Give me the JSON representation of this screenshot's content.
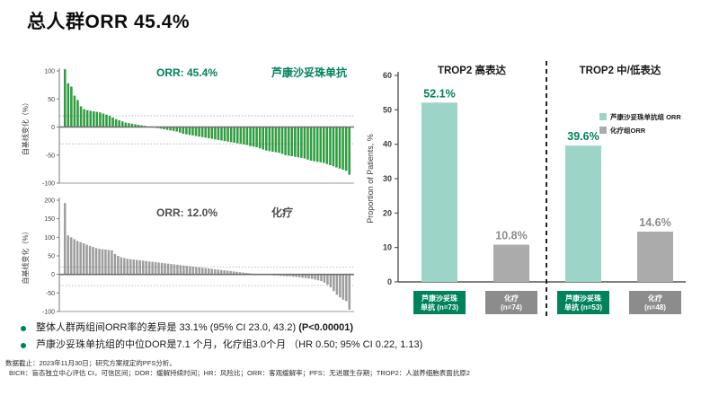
{
  "title": "总人群ORR 45.4%",
  "bullets": [
    {
      "text": "整体人群两组间ORR率的差异是 33.1% (95% CI 23.0, 43.2) ",
      "bold": "(P<0.00001)"
    },
    {
      "text": "芦康沙妥珠单抗组的中位DOR是7.1 个月，化疗组3.0个月 （HR 0.50; 95% CI 0.22, 1.13)",
      "bold": ""
    }
  ],
  "footnotes": [
    "数据截止：2023年11月30日；研究方案规定的PFS分析。",
    "BICR：盲态独立中心评估 CI，可信区间；DOR：缓解持续时间；HR：风险比；ORR：客观缓解率；PFS：无进展生存期；TROP2：人滋养细胞表面抗原2"
  ],
  "chart_data": [
    {
      "id": "waterfall_drug",
      "type": "bar",
      "title": "ORR: 45.4%",
      "arm_label": "芦康沙妥珠单抗",
      "ylabel": "自基线变化（%）",
      "ylim": [
        -100,
        100
      ],
      "yticks": [
        100,
        50,
        0,
        -50,
        -100
      ],
      "ref_lines": [
        20,
        -30
      ],
      "bar_color": "#2f9e41",
      "label_color": "#00815B",
      "values": [
        103,
        78,
        72,
        56,
        48,
        37,
        32,
        30,
        29,
        28,
        27,
        26,
        24,
        22,
        20,
        17,
        14,
        12,
        10,
        8,
        7,
        6,
        5,
        4,
        3,
        2,
        1,
        1,
        -1,
        -2,
        -3,
        -4,
        -5,
        -6,
        -7,
        -8,
        -10,
        -12,
        -13,
        -14,
        -15,
        -16,
        -17,
        -18,
        -19,
        -20,
        -21,
        -22,
        -23,
        -24,
        -25,
        -26,
        -27,
        -28,
        -29,
        -30,
        -31,
        -32,
        -34,
        -35,
        -36,
        -38,
        -40,
        -42,
        -43,
        -44,
        -45,
        -46,
        -48,
        -50,
        -51,
        -52,
        -53,
        -54,
        -55,
        -56,
        -58,
        -60,
        -61,
        -62,
        -63,
        -64,
        -66,
        -68,
        -70,
        -72,
        -74,
        -76,
        -78,
        -85
      ]
    },
    {
      "id": "waterfall_chemo",
      "type": "bar",
      "title": "ORR: 12.0%",
      "arm_label": "化疗",
      "ylabel": "自基线变化（%）",
      "ylim": [
        -100,
        200
      ],
      "yticks": [
        200,
        150,
        100,
        50,
        0,
        -50,
        -100
      ],
      "ref_lines": [
        20,
        -30
      ],
      "bar_color": "#9d9d9d",
      "label_color": "#4d4d4d",
      "values": [
        192,
        105,
        100,
        95,
        90,
        87,
        84,
        80,
        77,
        74,
        71,
        69,
        68,
        67,
        66,
        65,
        55,
        50,
        46,
        44,
        42,
        41,
        40,
        39,
        38,
        37,
        36,
        35,
        34,
        33,
        32,
        31,
        30,
        29,
        28,
        27,
        26,
        25,
        24,
        23,
        22,
        21,
        20,
        19,
        18,
        17,
        16,
        15,
        14,
        13,
        12,
        11,
        10,
        9,
        8,
        7,
        6,
        5,
        4,
        3,
        2,
        1,
        0,
        -1,
        -1,
        -2,
        -2,
        -3,
        -3,
        -4,
        -4,
        -5,
        -5,
        -6,
        -7,
        -8,
        -9,
        -10,
        -11,
        -12,
        -14,
        -16,
        -18,
        -22,
        -28,
        -35,
        -45,
        -55,
        -62,
        -68,
        -72,
        -95
      ]
    },
    {
      "id": "orr_by_trop2",
      "type": "bar",
      "ylabel": "Proportion of Patients, %",
      "ylim": [
        0,
        60
      ],
      "yticks": [
        0,
        10,
        20,
        30,
        40,
        50,
        60
      ],
      "series_styles": {
        "drug": {
          "bar": "#9CD4C7",
          "value_label": "#00815B",
          "box": "#00835C"
        },
        "chemo": {
          "bar": "#ABABAB",
          "value_label": "#8C8C8C",
          "box": "#8C8C8C"
        }
      },
      "groups": [
        {
          "title": "TROP2 高表达",
          "bars": [
            {
              "series": "drug",
              "value": 52.1,
              "value_label": "52.1%",
              "label_line1": "芦康沙妥珠",
              "label_line2": "单抗 (n=73)"
            },
            {
              "series": "chemo",
              "value": 10.8,
              "value_label": "10.8%",
              "label_line1": "化疗",
              "label_line2": "(n=74)"
            }
          ]
        },
        {
          "title": "TROP2 中/低表达",
          "bars": [
            {
              "series": "drug",
              "value": 39.6,
              "value_label": "39.6%",
              "label_line1": "芦康沙妥珠",
              "label_line2": "单抗 (n=53)"
            },
            {
              "series": "chemo",
              "value": 14.6,
              "value_label": "14.6%",
              "label_line1": "化疗",
              "label_line2": "(n=48)"
            }
          ]
        }
      ],
      "legend": [
        {
          "label": "芦康沙妥珠单抗组 ORR",
          "color": "#9CD4C7"
        },
        {
          "label": "化疗组ORR",
          "color": "#ABABAB"
        }
      ]
    }
  ]
}
